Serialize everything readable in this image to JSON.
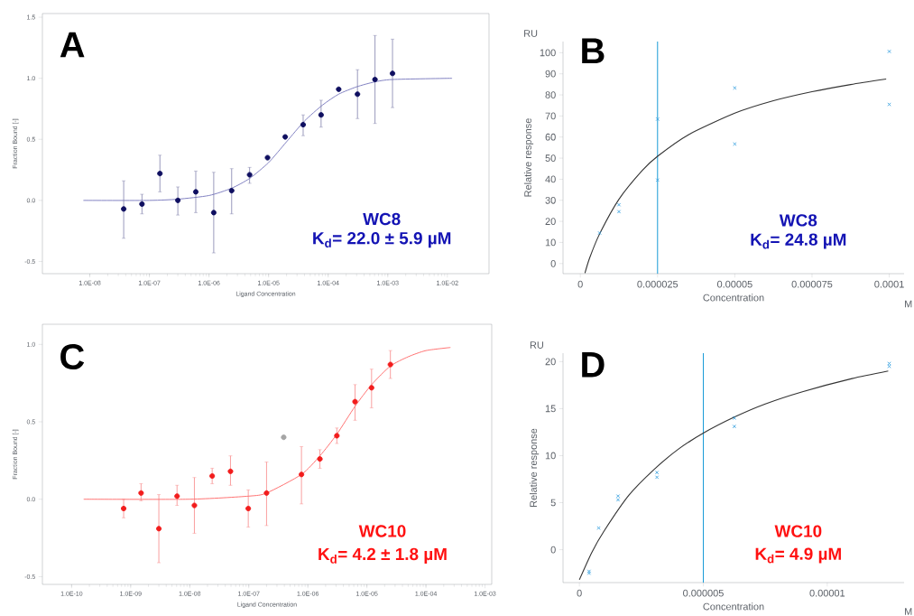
{
  "chart_data": [
    {
      "type": "scatter",
      "xlabel": "Ligand Concentration",
      "ylabel": "Fraction Bound [-]",
      "log": "x",
      "marker": "circle",
      "xlim": [
        1.6e-09,
        0.05
      ],
      "ylim": [
        -0.6,
        1.53
      ],
      "xticks": [
        {
          "value": 1e-08,
          "label": "1.0E-08"
        },
        {
          "value": 1e-07,
          "label": "1.0E-07"
        },
        {
          "value": 1e-06,
          "label": "1.0E-06"
        },
        {
          "value": 1e-05,
          "label": "1.0E-05"
        },
        {
          "value": 0.0001,
          "label": "1.0E-04"
        },
        {
          "value": 0.001,
          "label": "1.0E-03"
        },
        {
          "value": 0.01,
          "label": "1.0E-02"
        }
      ],
      "yticks": [
        {
          "value": -0.5,
          "label": "-0.5"
        },
        {
          "value": 0,
          "label": "0.0"
        },
        {
          "value": 0.5,
          "label": "0.5"
        },
        {
          "value": 1,
          "label": "1.0"
        },
        {
          "value": 1.5,
          "label": "1.5"
        }
      ],
      "series": [
        {
          "type": "scatter",
          "color": "#0f0f60",
          "x": [
            3.7e-08,
            7.5e-08,
            1.5e-07,
            3e-07,
            6e-07,
            1.2e-06,
            2.4e-06,
            4.8e-06,
            9.6e-06,
            1.9e-05,
            3.8e-05,
            7.6e-05,
            0.00015,
            0.00031,
            0.00061,
            0.0012
          ],
          "values": [
            -0.07,
            -0.03,
            0.22,
            0.0,
            0.07,
            -0.1,
            0.08,
            0.21,
            0.35,
            0.52,
            0.62,
            0.7,
            0.91,
            0.87,
            0.99,
            1.04
          ],
          "errors": [
            [
              -0.31,
              0.16
            ],
            [
              -0.11,
              0.05
            ],
            [
              0.07,
              0.37
            ],
            [
              -0.12,
              0.11
            ],
            [
              -0.1,
              0.24
            ],
            [
              -0.43,
              0.23
            ],
            [
              -0.11,
              0.26
            ],
            [
              0.14,
              0.27
            ],
            null,
            null,
            [
              0.53,
              0.7
            ],
            [
              0.6,
              0.82
            ],
            null,
            [
              0.67,
              1.07
            ],
            [
              0.63,
              1.35
            ],
            [
              0.76,
              1.32
            ]
          ]
        },
        {
          "type": "line",
          "marker": "none",
          "color": "#7b7bbf",
          "x": [
            7.8e-09,
            1e-07,
            3e-07,
            1e-06,
            2.4e-06,
            4.8e-06,
            1e-05,
            2e-05,
            4e-05,
            8e-05,
            0.00015,
            0.0003,
            0.0006,
            0.0012,
            0.012
          ],
          "values": [
            0.0,
            0.0,
            0.01,
            0.04,
            0.1,
            0.18,
            0.31,
            0.48,
            0.65,
            0.78,
            0.87,
            0.93,
            0.97,
            0.99,
            1.0
          ]
        }
      ],
      "annotations": [
        "A",
        "WC8",
        "K$_{d}$= 22.0 ± 5.9 µM"
      ]
    },
    {
      "type": "scatter",
      "xlabel": "Concentration",
      "ylabel": "Relative response",
      "marker": "cross",
      "xlim": [
        -5.6e-06,
        0.0001048
      ],
      "ylim": [
        -4.8,
        105.3
      ],
      "xticks": [
        0,
        {
          "value": 2.5e-05,
          "label": "0.000025"
        },
        {
          "value": 5e-05,
          "label": "0.00005"
        },
        {
          "value": 7.5e-05,
          "label": "0.000075"
        },
        {
          "value": 0.0001,
          "label": "0.0001"
        }
      ],
      "yticks": [
        0,
        10,
        20,
        30,
        40,
        50,
        60,
        70,
        80,
        90,
        100
      ],
      "series": [
        {
          "type": "scatter",
          "color": "#3ba3e0",
          "x": [
            6.25e-06,
            1.25e-05,
            1.25e-05,
            2.5e-05,
            2.5e-05,
            5e-05,
            5e-05,
            0.0001,
            0.0001
          ],
          "values": [
            14.5,
            27.9,
            24.6,
            68.5,
            39.6,
            83.3,
            56.7,
            100.6,
            75.5
          ]
        },
        {
          "type": "line",
          "marker": "none",
          "color": "#333333",
          "x": [
            1.5e-06,
            3e-06,
            6.25e-06,
            1.25e-05,
            2e-05,
            2.5e-05,
            3.5e-05,
            5e-05,
            6.25e-05,
            7.5e-05,
            8.75e-05,
            9.9e-05
          ],
          "values": [
            -4.5,
            2.6,
            14.1,
            30.5,
            44.1,
            50.9,
            61.1,
            71.3,
            77.2,
            81.5,
            84.9,
            87.5
          ]
        }
      ],
      "ref_lines": [
        {
          "axis": "x",
          "value": 2.5e-05,
          "color": "#1a9bd7"
        }
      ],
      "annotations": [
        "B",
        "WC8",
        "K$_{d}$= 24.8 µM",
        "RU",
        "M"
      ]
    },
    {
      "type": "scatter",
      "xlabel": "Ligand Concentration",
      "ylabel": "Fraction Bound [-]",
      "log": "x",
      "marker": "circle",
      "xlim": [
        3.2e-11,
        0.0013
      ],
      "ylim": [
        -0.55,
        1.13
      ],
      "xticks": [
        {
          "value": 1e-10,
          "label": "1.0E-10"
        },
        {
          "value": 1e-09,
          "label": "1.0E-09"
        },
        {
          "value": 1e-08,
          "label": "1.0E-08"
        },
        {
          "value": 1e-07,
          "label": "1.0E-07"
        },
        {
          "value": 1e-06,
          "label": "1.0E-06"
        },
        {
          "value": 1e-05,
          "label": "1.0E-05"
        },
        {
          "value": 0.0001,
          "label": "1.0E-04"
        },
        {
          "value": 0.001,
          "label": "1.0E-03"
        }
      ],
      "yticks": [
        {
          "value": -0.5,
          "label": "-0.5"
        },
        {
          "value": 0,
          "label": "0.0"
        },
        {
          "value": 0.5,
          "label": "0.5"
        },
        {
          "value": 1,
          "label": "1.0"
        }
      ],
      "series": [
        {
          "type": "scatter",
          "color": "#f21c1c",
          "x": [
            7.6e-10,
            1.5e-09,
            3e-09,
            6.1e-09,
            1.2e-08,
            2.4e-08,
            4.9e-08,
            9.8e-08,
            2e-07,
            7.8e-07,
            1.6e-06,
            3.1e-06,
            6.3e-06,
            1.2e-05,
            2.5e-05
          ],
          "values": [
            -0.06,
            0.04,
            -0.19,
            0.02,
            -0.04,
            0.15,
            0.18,
            -0.06,
            0.04,
            0.16,
            0.26,
            0.41,
            0.63,
            0.72,
            0.87
          ],
          "errors": [
            [
              -0.12,
              0.0
            ],
            [
              -0.01,
              0.1
            ],
            [
              -0.41,
              0.03
            ],
            [
              -0.04,
              0.09
            ],
            [
              -0.22,
              0.14
            ],
            [
              0.1,
              0.2
            ],
            [
              0.09,
              0.28
            ],
            [
              -0.18,
              0.06
            ],
            [
              -0.17,
              0.24
            ],
            [
              -0.03,
              0.34
            ],
            [
              0.2,
              0.32
            ],
            [
              0.36,
              0.46
            ],
            [
              0.51,
              0.74
            ],
            [
              0.59,
              0.84
            ],
            [
              0.78,
              0.96
            ]
          ]
        },
        {
          "type": "scatter",
          "color": "#a5a5a5",
          "x": [
            3.9e-07
          ],
          "values": [
            0.4
          ]
        },
        {
          "type": "line",
          "marker": "none",
          "color": "#ff6b6b",
          "x": [
            1.6e-10,
            1e-08,
            1e-07,
            2e-07,
            7.8e-07,
            1.6e-06,
            3.1e-06,
            6.3e-06,
            1.2e-05,
            2.5e-05,
            5e-05,
            0.0001,
            0.00026
          ],
          "values": [
            0.0,
            0.0,
            0.02,
            0.04,
            0.16,
            0.28,
            0.42,
            0.6,
            0.74,
            0.86,
            0.92,
            0.96,
            0.98
          ]
        }
      ],
      "annotations": [
        "C",
        "WC10",
        "K$_{d}$= 4.2 ± 1.8 µM"
      ]
    },
    {
      "type": "scatter",
      "xlabel": "Concentration",
      "ylabel": "Relative response",
      "marker": "cross",
      "xlim": [
        -6.6e-07,
        1.31e-05
      ],
      "ylim": [
        -3.5,
        20.9
      ],
      "xticks": [
        0,
        {
          "value": 5e-06,
          "label": "0.000005"
        },
        {
          "value": 1e-05,
          "label": "0.00001"
        }
      ],
      "yticks": [
        0,
        5,
        10,
        15,
        20
      ],
      "series": [
        {
          "type": "scatter",
          "color": "#3ba3e0",
          "x": [
            3.9e-07,
            3.9e-07,
            7.8e-07,
            1.56e-06,
            1.56e-06,
            3.13e-06,
            3.13e-06,
            6.25e-06,
            6.25e-06,
            1.25e-05,
            1.25e-05
          ],
          "values": [
            -2.3,
            -2.5,
            2.3,
            5.7,
            5.3,
            8.2,
            7.7,
            14.0,
            13.1,
            19.8,
            19.5
          ]
        },
        {
          "type": "line",
          "marker": "none",
          "color": "#333333",
          "x": [
            0,
            5e-07,
            1e-06,
            2e-06,
            3e-06,
            4e-06,
            5e-06,
            6.25e-06,
            7.5e-06,
            9e-06,
            1.1e-05,
            1.246e-05
          ],
          "values": [
            -3.2,
            -0.3,
            2.0,
            5.8,
            8.5,
            10.7,
            12.4,
            14.1,
            15.5,
            16.8,
            18.2,
            19.0
          ]
        }
      ],
      "ref_lines": [
        {
          "axis": "x",
          "value": 5e-06,
          "color": "#1a9bd7"
        }
      ],
      "annotations": [
        "D",
        "WC10",
        "K$_{d}$= 4.9 µM",
        "RU",
        "M"
      ]
    }
  ]
}
